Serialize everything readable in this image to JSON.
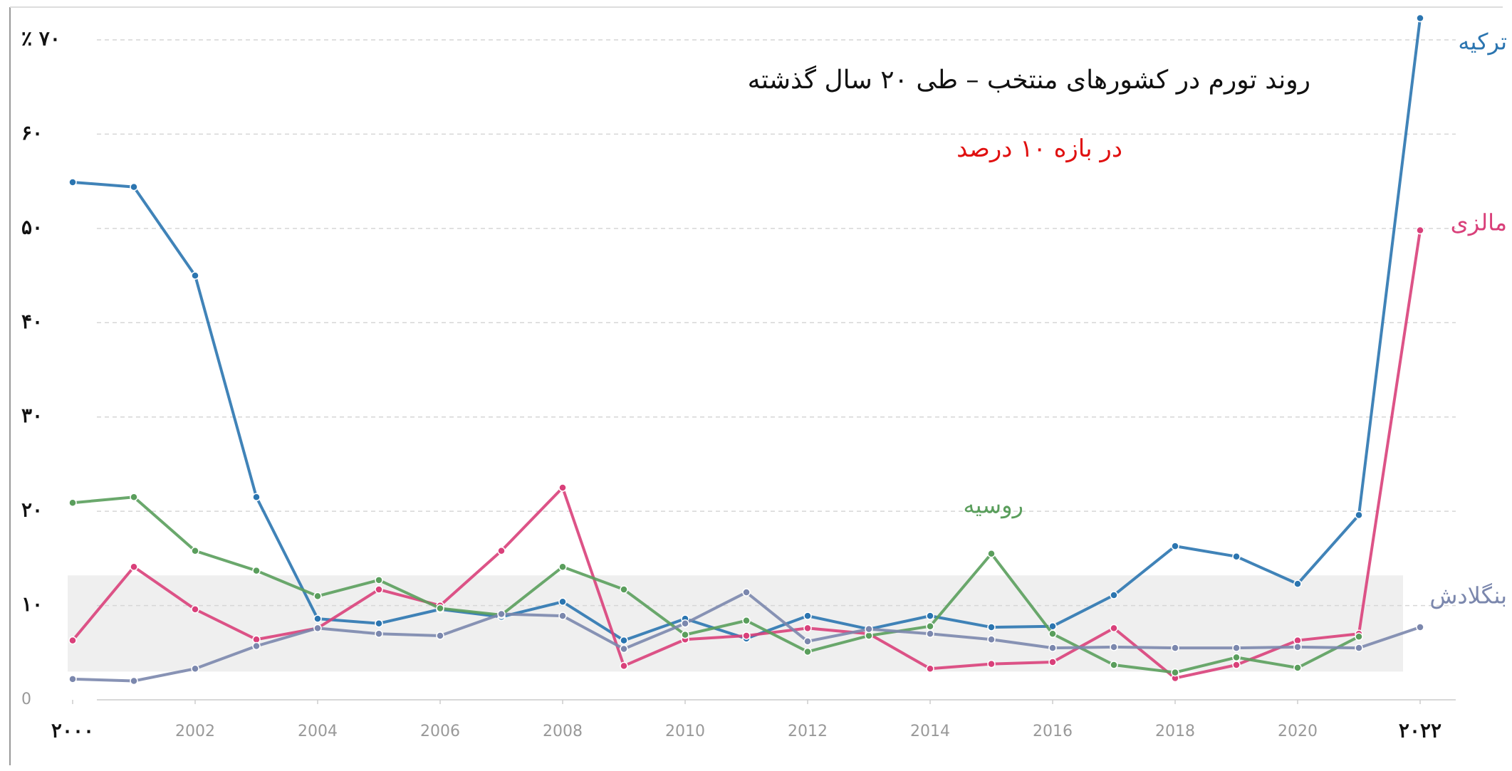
{
  "chart_data": {
    "type": "line",
    "title": "روند تورم در کشورهای منتخب – طی ۲۰ سال گذشته",
    "subtitle": "در بازه ۱۰ درصد",
    "x": [
      2000,
      2001,
      2002,
      2003,
      2004,
      2005,
      2006,
      2007,
      2008,
      2009,
      2010,
      2011,
      2012,
      2013,
      2014,
      2015,
      2016,
      2017,
      2018,
      2019,
      2020,
      2021,
      2022
    ],
    "xlim": [
      2000,
      2022
    ],
    "xticks": [
      {
        "value": 2000,
        "label": "۲۰۰۰"
      },
      2002,
      2004,
      2006,
      2008,
      2010,
      2012,
      2014,
      2016,
      2018,
      2020,
      {
        "value": 2022,
        "label": "۲۰۲۲"
      }
    ],
    "ylim": [
      0,
      70
    ],
    "yticks": [
      0,
      {
        "value": 10,
        "label": "۱۰"
      },
      {
        "value": 20,
        "label": "۲۰"
      },
      {
        "value": 30,
        "label": "۳۰"
      },
      {
        "value": 40,
        "label": "۴۰"
      },
      {
        "value": 50,
        "label": "۵۰"
      },
      {
        "value": 60,
        "label": "۶۰"
      },
      {
        "value": 70,
        "label": "٪ ۷۰"
      }
    ],
    "grid": true,
    "band": [
      3,
      13.2
    ],
    "series": [
      {
        "name": "ترکیه",
        "color": "#2b75b0",
        "values": [
          54.9,
          54.4,
          45.0,
          21.5,
          8.6,
          8.1,
          9.6,
          8.8,
          10.4,
          6.3,
          8.6,
          6.5,
          8.9,
          7.5,
          8.9,
          7.7,
          7.8,
          11.1,
          16.3,
          15.2,
          12.3,
          19.6,
          72.3
        ]
      },
      {
        "name": "مالزی",
        "color": "#d9407a",
        "values": [
          6.3,
          14.1,
          9.6,
          6.4,
          7.6,
          11.7,
          10.0,
          15.8,
          22.5,
          3.6,
          6.4,
          6.8,
          7.6,
          7.0,
          3.3,
          3.8,
          4.0,
          7.6,
          2.3,
          3.7,
          6.3,
          7.0,
          49.8
        ]
      },
      {
        "name": "روسیه",
        "color": "#5a9e5c",
        "values": [
          20.9,
          21.5,
          15.8,
          13.7,
          11.0,
          12.7,
          9.7,
          9.0,
          14.1,
          11.7,
          6.9,
          8.4,
          5.1,
          6.8,
          7.8,
          15.5,
          7.0,
          3.7,
          2.9,
          4.5,
          3.4,
          6.7,
          null
        ]
      },
      {
        "name": "بنگلادش",
        "color": "#7b87ad",
        "values": [
          2.2,
          2.0,
          3.3,
          5.7,
          7.6,
          7.0,
          6.8,
          9.1,
          8.9,
          5.4,
          8.1,
          11.4,
          6.2,
          7.5,
          7.0,
          6.4,
          5.5,
          5.6,
          5.5,
          5.5,
          5.6,
          5.5,
          7.7
        ]
      }
    ]
  }
}
